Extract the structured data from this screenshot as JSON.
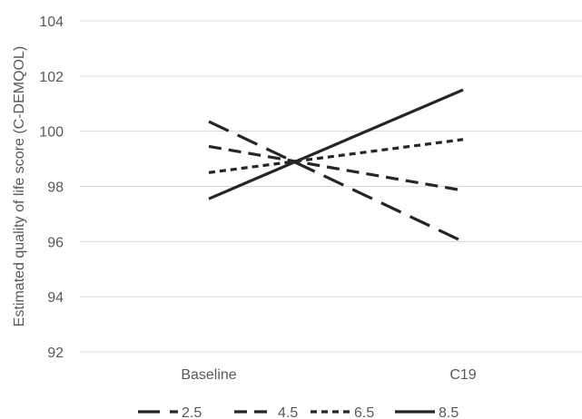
{
  "chart_data": {
    "type": "line",
    "title": "",
    "xlabel": "",
    "ylabel": "Estimated quality of life score (C-DEMQOL)",
    "categories": [
      "Baseline",
      "C19"
    ],
    "ylim": [
      92,
      104
    ],
    "y_ticks": [
      "92",
      "94",
      "96",
      "98",
      "100",
      "102",
      "104"
    ],
    "grid": "horizontal",
    "legend_position": "bottom",
    "series": [
      {
        "name": "2.5",
        "values": [
          100.35,
          96.0
        ],
        "color": "#262626",
        "dash": "long-dash"
      },
      {
        "name": "4.5",
        "values": [
          99.45,
          97.85
        ],
        "color": "#262626",
        "dash": "dash"
      },
      {
        "name": "6.5",
        "values": [
          98.5,
          99.7
        ],
        "color": "#262626",
        "dash": "short-dash"
      },
      {
        "name": "8.5",
        "values": [
          97.55,
          101.5
        ],
        "color": "#262626",
        "dash": "solid"
      }
    ],
    "gridline_color": "#d9d9d9",
    "text_color": "#595959"
  }
}
